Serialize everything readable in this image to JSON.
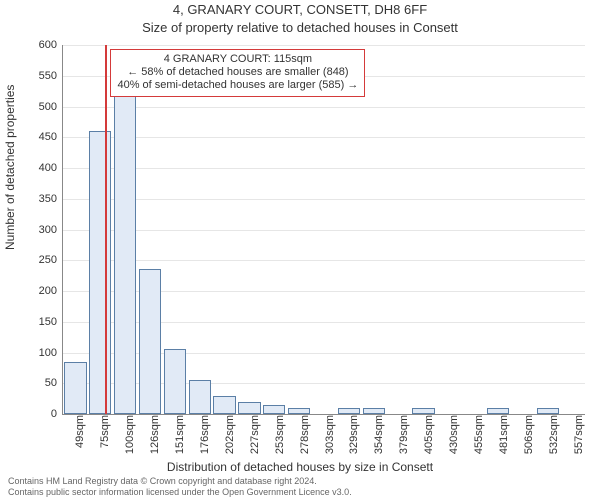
{
  "titles": {
    "line1": "4, GRANARY COURT, CONSETT, DH8 6FF",
    "line2": "Size of property relative to detached houses in Consett"
  },
  "ylabel": "Number of detached properties",
  "xlabel": "Distribution of detached houses by size in Consett",
  "chart": {
    "type": "histogram",
    "ylim": [
      0,
      600
    ],
    "ytick_step": 50,
    "background_color": "#ffffff",
    "grid_color": "#e6e6e6",
    "bar_fill": "#e1eaf6",
    "bar_border": "#5b7fa6",
    "marker_color": "#d43a3a",
    "bins": [
      {
        "label": "49sqm",
        "value": 85
      },
      {
        "label": "75sqm",
        "value": 460,
        "marker_after": true
      },
      {
        "label": "100sqm",
        "value": 555
      },
      {
        "label": "126sqm",
        "value": 235
      },
      {
        "label": "151sqm",
        "value": 105
      },
      {
        "label": "176sqm",
        "value": 55
      },
      {
        "label": "202sqm",
        "value": 30
      },
      {
        "label": "227sqm",
        "value": 20
      },
      {
        "label": "253sqm",
        "value": 15
      },
      {
        "label": "278sqm",
        "value": 10
      },
      {
        "label": "303sqm",
        "value": 0
      },
      {
        "label": "329sqm",
        "value": 10
      },
      {
        "label": "354sqm",
        "value": 10
      },
      {
        "label": "379sqm",
        "value": 0
      },
      {
        "label": "405sqm",
        "value": 10
      },
      {
        "label": "430sqm",
        "value": 0
      },
      {
        "label": "455sqm",
        "value": 0
      },
      {
        "label": "481sqm",
        "value": 10
      },
      {
        "label": "506sqm",
        "value": 0
      },
      {
        "label": "532sqm",
        "value": 10
      },
      {
        "label": "557sqm",
        "value": 0
      }
    ]
  },
  "annotation": {
    "lines": [
      "4 GRANARY COURT: 115sqm",
      "← 58% of detached houses are smaller (848)",
      "40% of semi-detached houses are larger (585) →"
    ]
  },
  "footer": {
    "line1": "Contains HM Land Registry data © Crown copyright and database right 2024.",
    "line2": "Contains public sector information licensed under the Open Government Licence v3.0."
  }
}
